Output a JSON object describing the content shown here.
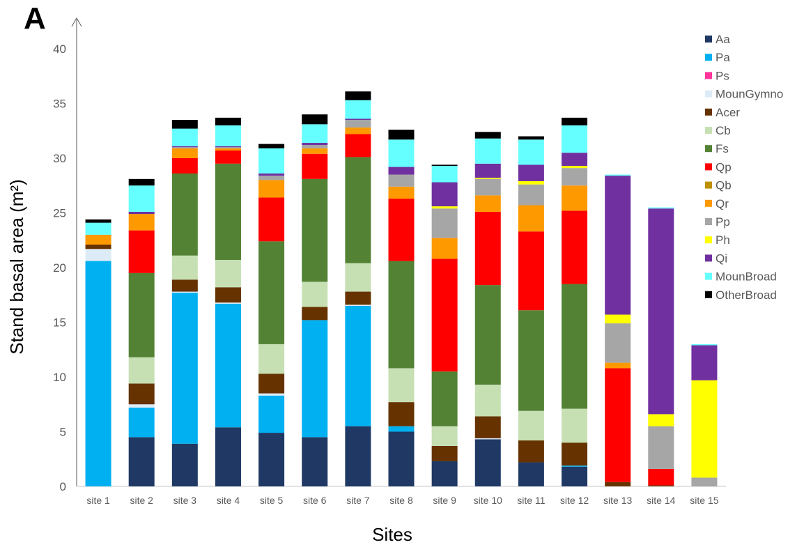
{
  "panel_label": "A",
  "chart_data": {
    "type": "bar",
    "stacked": true,
    "title": "",
    "xlabel": "Sites",
    "ylabel": "Stand basal area (m²)",
    "ylim": [
      0,
      40
    ],
    "yticks": [
      0,
      5,
      10,
      15,
      20,
      25,
      30,
      35,
      40
    ],
    "grid": false,
    "legend_position": "right",
    "categories": [
      "site 1",
      "site 2",
      "site 3",
      "site 4",
      "site 5",
      "site 6",
      "site 7",
      "site 8",
      "site 9",
      "site 10",
      "site 11",
      "site 12",
      "site 13",
      "site 14",
      "site 15"
    ],
    "series": [
      {
        "name": "Aa",
        "color": "#1F3864",
        "values": [
          0,
          4.5,
          3.9,
          5.4,
          4.9,
          4.5,
          5.5,
          5.0,
          2.3,
          4.3,
          2.2,
          1.8,
          0,
          0,
          0
        ]
      },
      {
        "name": "Pa",
        "color": "#00B0F0",
        "values": [
          20.6,
          2.7,
          13.8,
          11.3,
          3.4,
          10.7,
          11.0,
          0.5,
          0,
          0,
          0,
          0.1,
          0,
          0,
          0
        ]
      },
      {
        "name": "Ps",
        "color": "#FF3399",
        "values": [
          0,
          0,
          0,
          0,
          0,
          0,
          0,
          0,
          0,
          0,
          0,
          0,
          0,
          0,
          0
        ]
      },
      {
        "name": "MounGymno",
        "color": "#DDEBF7",
        "values": [
          1.1,
          0.3,
          0.1,
          0.1,
          0.2,
          0,
          0.1,
          0,
          0,
          0.1,
          0,
          0,
          0,
          0,
          0
        ]
      },
      {
        "name": "Acer",
        "color": "#663300",
        "values": [
          0.4,
          1.9,
          1.1,
          1.4,
          1.8,
          1.2,
          1.2,
          2.2,
          1.4,
          2.0,
          2.0,
          2.1,
          0.4,
          0.1,
          0
        ]
      },
      {
        "name": "Cb",
        "color": "#C6E0B4",
        "values": [
          0,
          2.4,
          2.2,
          2.5,
          2.7,
          2.3,
          2.6,
          3.1,
          1.8,
          2.9,
          2.7,
          3.1,
          0,
          0,
          0
        ]
      },
      {
        "name": "Fs",
        "color": "#548235",
        "values": [
          0,
          7.7,
          7.5,
          8.8,
          9.4,
          9.4,
          9.7,
          9.8,
          5.0,
          9.1,
          9.2,
          11.4,
          0,
          0,
          0
        ]
      },
      {
        "name": "Qp",
        "color": "#FF0000",
        "values": [
          0,
          3.9,
          1.4,
          1.2,
          4.0,
          2.3,
          2.1,
          5.7,
          10.3,
          6.7,
          7.2,
          6.7,
          10.4,
          1.5,
          0
        ]
      },
      {
        "name": "Qb",
        "color": "#BF9000",
        "values": [
          0,
          0,
          0,
          0,
          0,
          0,
          0,
          0,
          0,
          0,
          0,
          0,
          0,
          0,
          0
        ]
      },
      {
        "name": "Qr",
        "color": "#FF9900",
        "values": [
          0.9,
          1.5,
          0.9,
          0.2,
          1.6,
          0.5,
          0.6,
          1.1,
          1.9,
          1.5,
          2.4,
          2.3,
          0.5,
          0,
          0
        ]
      },
      {
        "name": "Pp",
        "color": "#A6A6A6",
        "values": [
          0,
          0,
          0.1,
          0.1,
          0.4,
          0.3,
          0.7,
          1.1,
          2.7,
          1.5,
          1.9,
          1.6,
          3.6,
          3.9,
          0.8
        ]
      },
      {
        "name": "Ph",
        "color": "#FFFF00",
        "values": [
          0,
          0,
          0,
          0,
          0,
          0,
          0,
          0,
          0.2,
          0.1,
          0.3,
          0.2,
          0.8,
          1.1,
          8.9
        ]
      },
      {
        "name": "Qi",
        "color": "#7030A0",
        "values": [
          0,
          0.2,
          0.1,
          0.1,
          0.2,
          0.2,
          0.1,
          0.7,
          2.2,
          1.3,
          1.5,
          1.2,
          12.7,
          18.8,
          3.2
        ]
      },
      {
        "name": "MounBroad",
        "color": "#66FFFF",
        "values": [
          1.1,
          2.4,
          1.6,
          1.9,
          2.3,
          1.7,
          1.7,
          2.5,
          1.5,
          2.3,
          2.3,
          2.5,
          0.1,
          0.1,
          0.1
        ]
      },
      {
        "name": "OtherBroad",
        "color": "#000000",
        "values": [
          0.3,
          0.6,
          0.8,
          0.7,
          0.4,
          0.9,
          0.8,
          0.9,
          0.1,
          0.6,
          0.3,
          0.7,
          0,
          0,
          0
        ]
      }
    ]
  }
}
